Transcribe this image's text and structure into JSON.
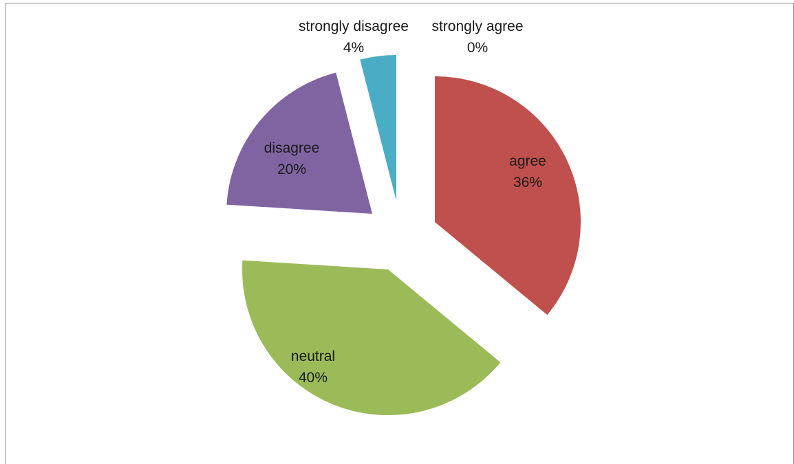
{
  "chart_data": {
    "type": "pie",
    "exploded": true,
    "slices": [
      {
        "name": "agree",
        "value": 36,
        "label": "36%",
        "color": "#c0504d"
      },
      {
        "name": "neutral",
        "value": 40,
        "label": "40%",
        "color": "#9bbb59"
      },
      {
        "name": "disagree",
        "value": 20,
        "label": "20%",
        "color": "#8064a2"
      },
      {
        "name": "strongly disagree",
        "value": 4,
        "label": "4%",
        "color": "#4bacc6"
      },
      {
        "name": "strongly agree",
        "value": 0,
        "label": "0%",
        "color": "#f79646"
      }
    ]
  }
}
